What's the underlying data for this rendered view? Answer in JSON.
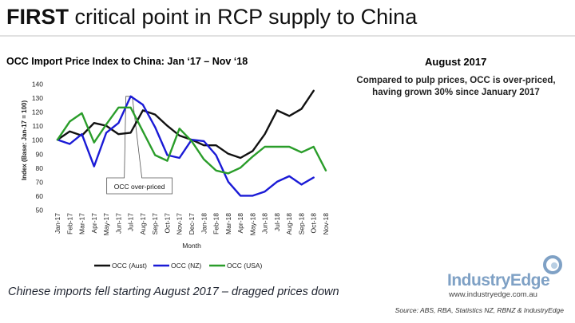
{
  "slide": {
    "title_bold": "FIRST",
    "title_rest": " critical point in RCP supply to China",
    "chart_heading": "OCC Import Price Index to China: Jan ‘17 – Nov ‘18",
    "date_label": "August 2017",
    "note": "Compared to pulp prices, OCC is over-priced, having grown 30% since January 2017",
    "caption": "Chinese imports fell starting August 2017 – dragged prices down",
    "logo_text": "IndustryEdge",
    "logo_url": "www.industryedge.com.au",
    "source": "Source: ABS, RBA, Statistics NZ, RBNZ & IndustryEdge"
  },
  "chart_data": {
    "type": "line",
    "title": "OCC Import Price Index to China: Jan ‘17 – Nov ‘18",
    "xlabel": "Month",
    "ylabel": "Index (Base: Jan-17 = 100)",
    "ylim": [
      50,
      140
    ],
    "yticks": [
      50,
      60,
      70,
      80,
      90,
      100,
      110,
      120,
      130,
      140
    ],
    "grid": false,
    "legend_position": "bottom",
    "categories": [
      "Jan-17",
      "Feb-17",
      "Mar-17",
      "Apr-17",
      "May-17",
      "Jun-17",
      "Jul-17",
      "Aug-17",
      "Sep-17",
      "Oct-17",
      "Nov-17",
      "Dec-17",
      "Jan-18",
      "Feb-18",
      "Mar-18",
      "Apr-18",
      "May-18",
      "Jun-18",
      "Jul-18",
      "Aug-18",
      "Sep-18",
      "Oct-18",
      "Nov-18"
    ],
    "series": [
      {
        "name": "OCC (Aust)",
        "color": "#111111",
        "values": [
          100,
          106,
          103,
          112,
          110,
          104,
          105,
          121,
          118,
          110,
          103,
          100,
          96,
          96,
          90,
          87,
          92,
          104,
          121,
          117,
          122,
          135,
          null
        ]
      },
      {
        "name": "OCC (NZ)",
        "color": "#1a1ad6",
        "values": [
          100,
          97,
          104,
          81,
          105,
          112,
          131,
          125,
          109,
          89,
          87,
          100,
          99,
          89,
          70,
          60,
          60,
          63,
          70,
          74,
          68,
          73,
          null
        ]
      },
      {
        "name": "OCC (USA)",
        "color": "#2a9d2a",
        "values": [
          100,
          113,
          119,
          98,
          111,
          123,
          123,
          106,
          89,
          85,
          108,
          99,
          86,
          78,
          76,
          80,
          88,
          95,
          95,
          95,
          91,
          95,
          78
        ]
      }
    ],
    "annotation": {
      "text": "OCC over-priced",
      "category": "Jul-17"
    }
  }
}
